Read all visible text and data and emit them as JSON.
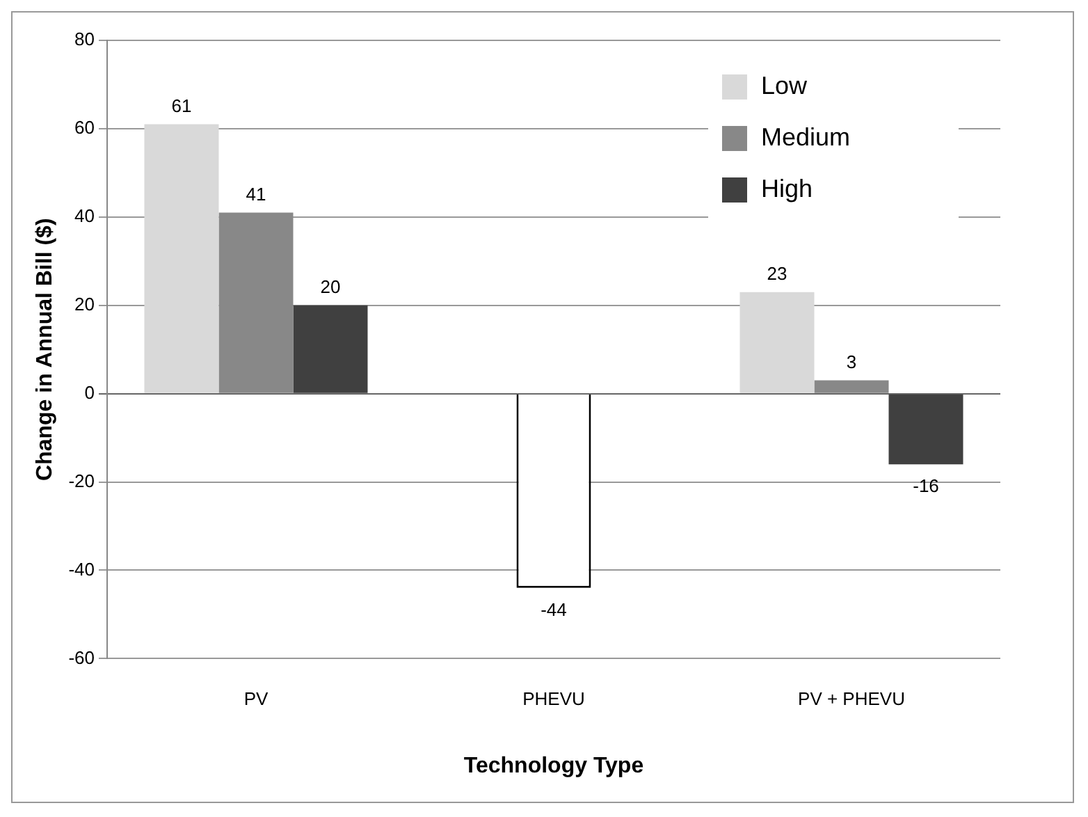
{
  "chart_data": {
    "type": "bar",
    "xlabel": "Technology Type",
    "ylabel": "Change in Annual Bill ($)",
    "categories": [
      "PV",
      "PHEVU",
      "PV + PHEVU"
    ],
    "series": [
      {
        "name": "Low",
        "color": "#d9d9d9",
        "values": [
          61,
          null,
          23
        ]
      },
      {
        "name": "Medium",
        "color": "#888888",
        "colors": [
          "#888888",
          "#ffffff",
          "#888888"
        ],
        "values": [
          41,
          -44,
          3
        ]
      },
      {
        "name": "High",
        "color": "#404040",
        "values": [
          20,
          null,
          -16
        ]
      }
    ],
    "ylim": [
      -60,
      80
    ],
    "yticks": [
      -60,
      -40,
      -20,
      0,
      20,
      40,
      60,
      80
    ],
    "grid": "y",
    "legend": "top right",
    "data_labels": true
  }
}
